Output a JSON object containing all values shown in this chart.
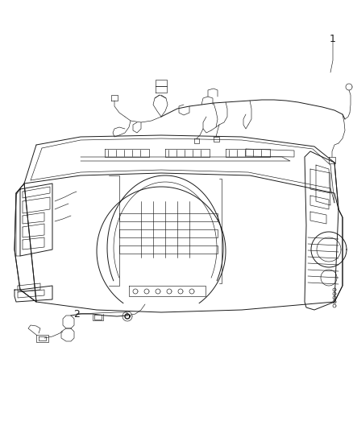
{
  "background_color": "#ffffff",
  "line_color": "#1a1a1a",
  "label_color": "#1a1a1a",
  "label1_text": "1",
  "label2_text": "2",
  "fig_width": 4.38,
  "fig_height": 5.33,
  "dpi": 100,
  "lw_main": 0.7,
  "lw_thin": 0.45,
  "lw_thick": 1.0
}
